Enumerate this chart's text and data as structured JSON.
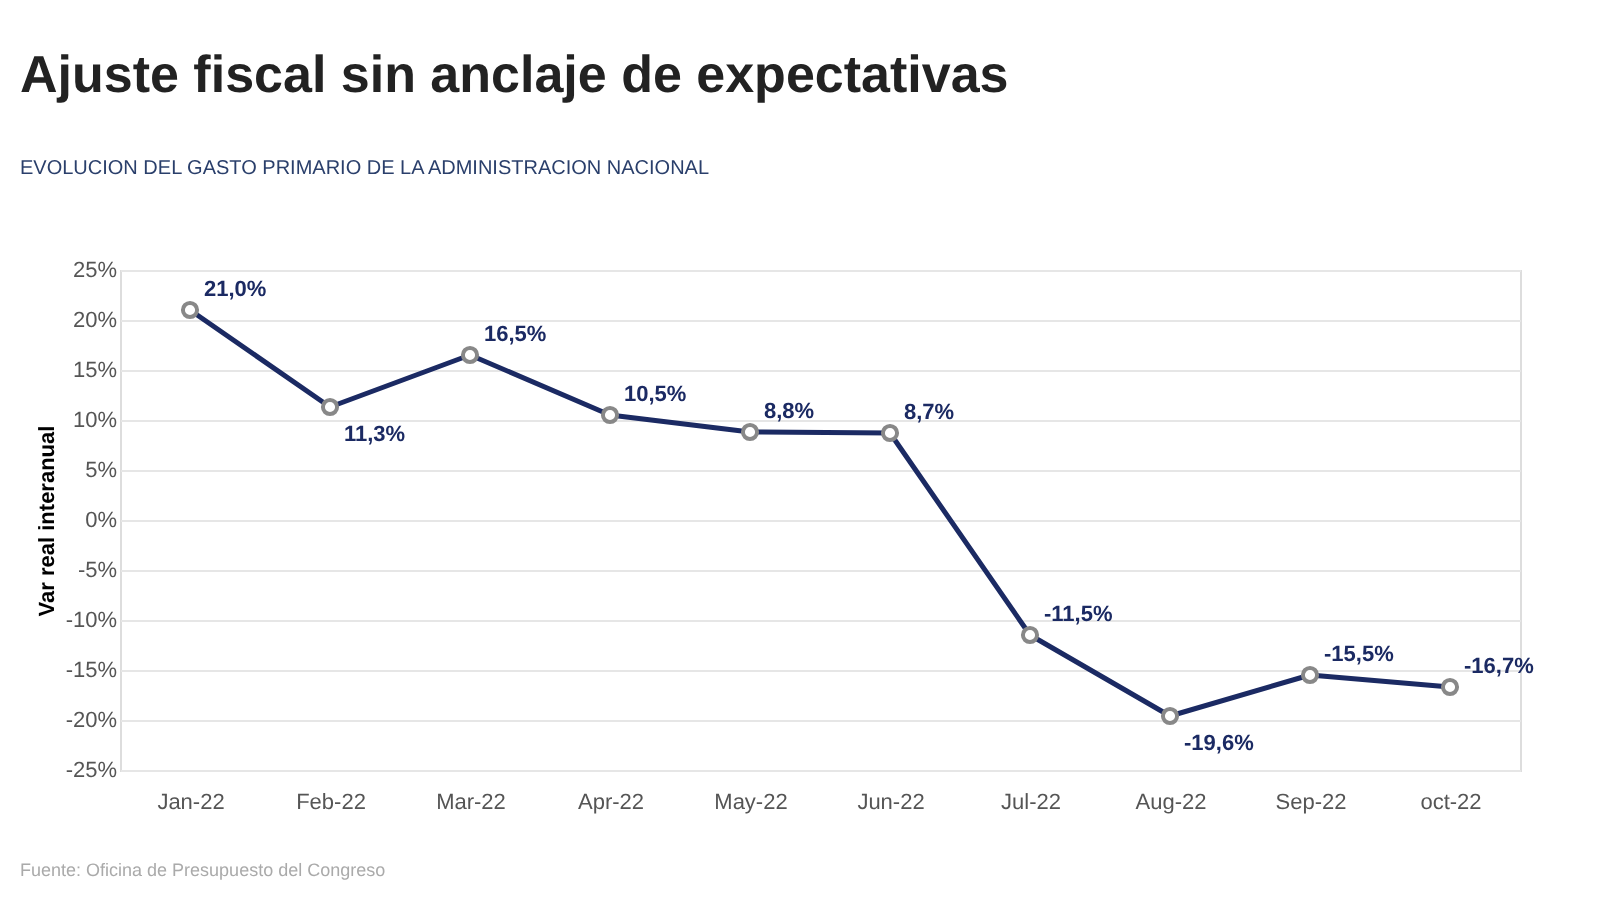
{
  "chart_data": {
    "type": "line",
    "title": "Ajuste fiscal sin anclaje de expectativas",
    "subtitle": "EVOLUCION DEL GASTO PRIMARIO DE LA ADMINISTRACION NACIONAL",
    "ylabel": "Var real interanual",
    "categories": [
      "Jan-22",
      "Feb-22",
      "Mar-22",
      "Apr-22",
      "May-22",
      "Jun-22",
      "Jul-22",
      "Aug-22",
      "Sep-22",
      "oct-22"
    ],
    "series": [
      {
        "color": "#1b2a63",
        "values": [
          21.0,
          11.3,
          16.5,
          10.5,
          8.8,
          8.7,
          -11.5,
          -19.6,
          -15.5,
          -16.7
        ],
        "value_labels": [
          "21,0%",
          "11,3%",
          "16,5%",
          "10,5%",
          "8,8%",
          "8,7%",
          "-11,5%",
          "-19,6%",
          "-15,5%",
          "-16,7%"
        ]
      }
    ],
    "ylim": [
      -25,
      25
    ],
    "yticks": [
      {
        "value": -25,
        "label": "-25%"
      },
      {
        "value": -20,
        "label": "-20%"
      },
      {
        "value": -15,
        "label": "-15%"
      },
      {
        "value": -10,
        "label": "-10%"
      },
      {
        "value": -5,
        "label": "-5%"
      },
      {
        "value": 0,
        "label": "0%"
      },
      {
        "value": 5,
        "label": "5%"
      },
      {
        "value": 10,
        "label": "10%"
      },
      {
        "value": 15,
        "label": "15%"
      },
      {
        "value": 20,
        "label": "20%"
      },
      {
        "value": 25,
        "label": "25%"
      }
    ],
    "grid": "y",
    "marker": "circle",
    "line_style": "solid",
    "annotations": [
      "Fuente: Oficina de Presupuesto del Congreso"
    ]
  }
}
